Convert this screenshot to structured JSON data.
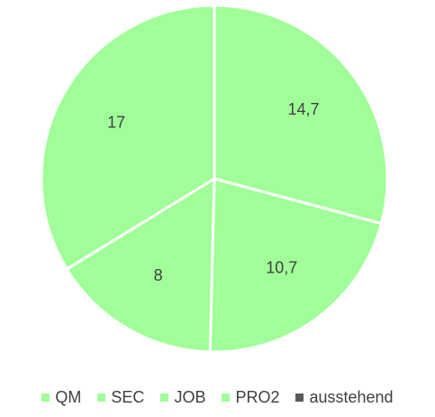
{
  "chart_data": {
    "type": "pie",
    "slices": [
      {
        "label": "QM",
        "value": 14.7,
        "value_label": "14,7",
        "color": "#a0ff98"
      },
      {
        "label": "SEC",
        "value": 10.7,
        "value_label": "10,7",
        "color": "#a0ff98"
      },
      {
        "label": "JOB",
        "value": 8,
        "value_label": "8",
        "color": "#a0ff98"
      },
      {
        "label": "PRO2",
        "value": 17,
        "value_label": "17",
        "color": "#a0ff98"
      },
      {
        "label": "ausstehend",
        "value": 0,
        "value_label": "",
        "color": "#5a5a5a"
      }
    ],
    "legend_position": "bottom",
    "slice_separator_color": "#ffffff",
    "label_color": "#404040"
  }
}
